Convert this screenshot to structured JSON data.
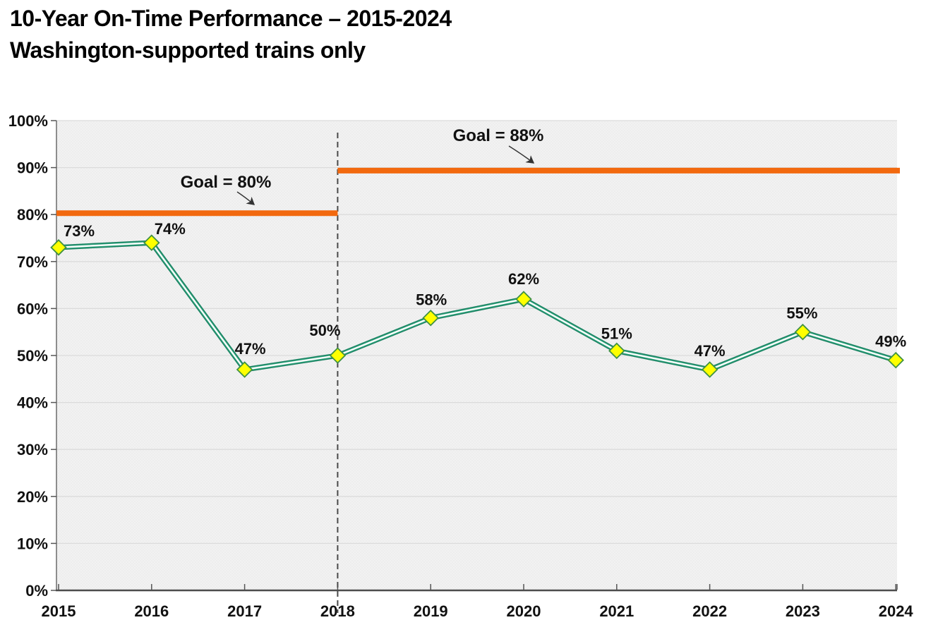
{
  "title": {
    "line1": "10-Year On-Time Performance – 2015-2024",
    "line2": "Washington-supported trains only"
  },
  "chart_data": {
    "type": "line",
    "title": "10-Year On-Time Performance – 2015-2024",
    "subtitle": "Washington-supported trains only",
    "categories": [
      "2015",
      "2016",
      "2017",
      "2018",
      "2019",
      "2020",
      "2021",
      "2022",
      "2023",
      "2024"
    ],
    "series": [
      {
        "name": "On-time performance",
        "values": [
          73,
          74,
          47,
          50,
          58,
          62,
          51,
          47,
          55,
          49
        ],
        "point_labels": [
          "73%",
          "74%",
          "47%",
          "50%",
          "58%",
          "62%",
          "51%",
          "47%",
          "55%",
          "49%"
        ]
      }
    ],
    "goal_lines": [
      {
        "label": "Goal = 80%",
        "value": 80,
        "from_category": "2015",
        "to_category": "2018"
      },
      {
        "label": "Goal = 88%",
        "value": 88,
        "from_category": "2018",
        "to_category": "2024"
      }
    ],
    "divider_category": "2018",
    "y_tick_labels": [
      "0%",
      "10%",
      "20%",
      "30%",
      "40%",
      "50%",
      "60%",
      "70%",
      "80%",
      "90%",
      "100%"
    ],
    "ylim": [
      0,
      100
    ],
    "grid": true,
    "legend": "none",
    "colors": {
      "series_line_outer": "#1B8262",
      "series_line_inner": "#2EA17B",
      "series_line_core": "#FFFFFF",
      "marker_fill": "#FFFF00",
      "marker_border": "#3F9142",
      "goal_line": "#F2690F",
      "gridline": "#DBDBDB",
      "x_axis": "#4D4D4D",
      "y_axis": "#6B6B6B",
      "tick": "#555555",
      "divider": "#4A4A4A",
      "plot_bg": "#F2F2F2",
      "text": "#111111"
    }
  }
}
